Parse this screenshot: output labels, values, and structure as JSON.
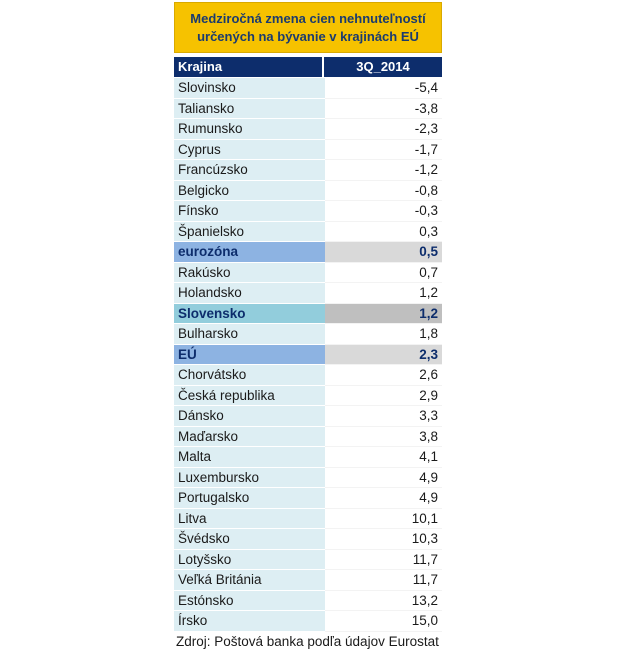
{
  "table": {
    "title_line1": "Medziročná zmena cien nehnuteľností",
    "title_line2": "určených na bývanie v krajinách EÚ",
    "header_country": "Krajina",
    "header_value": "3Q_2014",
    "rows": [
      {
        "country": "Slovinsko",
        "value": "-5,4",
        "highlight": ""
      },
      {
        "country": "Taliansko",
        "value": "-3,8",
        "highlight": ""
      },
      {
        "country": "Rumunsko",
        "value": "-2,3",
        "highlight": ""
      },
      {
        "country": "Cyprus",
        "value": "-1,7",
        "highlight": ""
      },
      {
        "country": "Francúzsko",
        "value": "-1,2",
        "highlight": ""
      },
      {
        "country": "Belgicko",
        "value": "-0,8",
        "highlight": ""
      },
      {
        "country": "Fínsko",
        "value": "-0,3",
        "highlight": ""
      },
      {
        "country": "Španielsko",
        "value": "0,3",
        "highlight": ""
      },
      {
        "country": "eurozóna",
        "value": "0,5",
        "highlight": "euro"
      },
      {
        "country": "Rakúsko",
        "value": "0,7",
        "highlight": ""
      },
      {
        "country": "Holandsko",
        "value": "1,2",
        "highlight": ""
      },
      {
        "country": "Slovensko",
        "value": "1,2",
        "highlight": "sk"
      },
      {
        "country": "Bulharsko",
        "value": "1,8",
        "highlight": ""
      },
      {
        "country": "EÚ",
        "value": "2,3",
        "highlight": "eu"
      },
      {
        "country": "Chorvátsko",
        "value": "2,6",
        "highlight": ""
      },
      {
        "country": "Česká republika",
        "value": "2,9",
        "highlight": ""
      },
      {
        "country": "Dánsko",
        "value": "3,3",
        "highlight": ""
      },
      {
        "country": "Maďarsko",
        "value": "3,8",
        "highlight": ""
      },
      {
        "country": "Malta",
        "value": "4,1",
        "highlight": ""
      },
      {
        "country": "Luxembursko",
        "value": "4,9",
        "highlight": ""
      },
      {
        "country": "Portugalsko",
        "value": "4,9",
        "highlight": ""
      },
      {
        "country": "Litva",
        "value": "10,1",
        "highlight": ""
      },
      {
        "country": "Švédsko",
        "value": "10,3",
        "highlight": ""
      },
      {
        "country": "Lotyšsko",
        "value": "11,7",
        "highlight": ""
      },
      {
        "country": "Veľká Británia",
        "value": "11,7",
        "highlight": ""
      },
      {
        "country": "Estónsko",
        "value": "13,2",
        "highlight": ""
      },
      {
        "country": "Írsko",
        "value": "15,0",
        "highlight": ""
      }
    ],
    "source": "Zdroj: Poštová banka podľa údajov Eurostat"
  }
}
